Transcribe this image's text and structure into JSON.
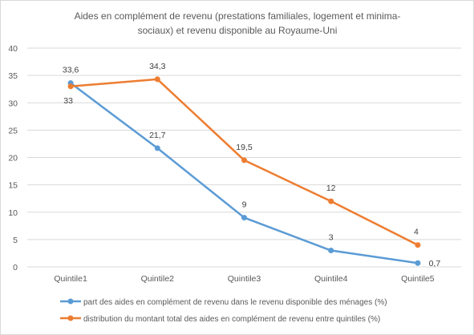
{
  "chart_data": {
    "type": "line",
    "title_lines": [
      "Aides en complément de revenu (prestations familiales, logement et minima-",
      "sociaux) et revenu disponible au Royaume-Uni"
    ],
    "categories": [
      "Quintile1",
      "Quintile2",
      "Quintile3",
      "Quintile4",
      "Quintile5"
    ],
    "y_ticks": [
      0,
      5,
      10,
      15,
      20,
      25,
      30,
      35,
      40
    ],
    "ylim": [
      0,
      40
    ],
    "grid": true,
    "legend_position": "bottom",
    "series": [
      {
        "name": "part des aides en complément de revenu dans le revenu disponible des ménages (%)",
        "color": "#5b9bd5",
        "values": [
          33.6,
          21.7,
          9,
          3,
          0.7
        ],
        "labels": [
          "33,6",
          "21,7",
          "9",
          "3",
          "0,7"
        ]
      },
      {
        "name": "distribution du montant total des aides en complément de revenu entre quintiles (%)",
        "color": "#ed7d31",
        "values": [
          33,
          34.3,
          19.5,
          12,
          4
        ],
        "labels": [
          "33",
          "34,3",
          "19,5",
          "12",
          "4"
        ]
      }
    ]
  }
}
